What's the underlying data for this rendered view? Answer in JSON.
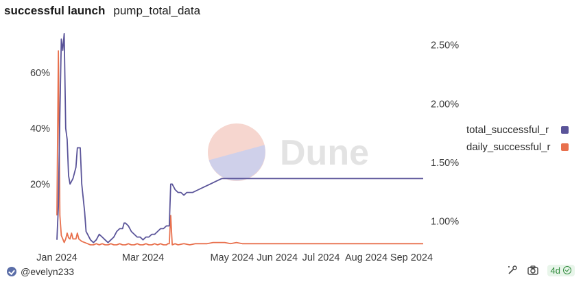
{
  "header": {
    "title": "successful launch",
    "subtitle": "pump_total_data"
  },
  "watermark": {
    "text": "Dune"
  },
  "footer": {
    "user": "@evelyn233",
    "age_badge": "4d",
    "icons": [
      "avatar-verified-icon",
      "wand-icon",
      "camera-icon",
      "check-circle-icon"
    ]
  },
  "colors": {
    "total": "#5a5499",
    "daily": "#e8704d",
    "watermark_top": "#f6d6cf",
    "watermark_bottom": "#cfd0ea"
  },
  "chart_data": {
    "type": "line",
    "title": "successful launch",
    "xlabel": "",
    "ylabel": "",
    "x_ticks": [
      "Jan 2024",
      "Mar 2024",
      "May 2024",
      "Jun 2024",
      "Jul 2024",
      "Aug 2024",
      "Sep 2024"
    ],
    "x_tick_days": [
      17,
      76,
      137,
      168,
      198,
      229,
      260
    ],
    "x_range_days": [
      17,
      268
    ],
    "y_left": {
      "ticks": [
        "20%",
        "40%",
        "60%"
      ],
      "tick_values": [
        20,
        40,
        60
      ],
      "range": [
        -1.8,
        72
      ]
    },
    "y_right": {
      "ticks": [
        "1.00%",
        "1.50%",
        "2.00%",
        "2.50%"
      ],
      "tick_values": [
        1.0,
        1.5,
        2.0,
        2.5
      ],
      "range": [
        0.8,
        2.55
      ]
    },
    "legend": [
      "total_successful_r",
      "daily_successful_r"
    ],
    "series": [
      {
        "name": "total_successful_r",
        "axis": "left",
        "points": [
          [
            17,
            0
          ],
          [
            18,
            12
          ],
          [
            19,
            45
          ],
          [
            20,
            72
          ],
          [
            21,
            68
          ],
          [
            22,
            74
          ],
          [
            23,
            40
          ],
          [
            24,
            36
          ],
          [
            25,
            23
          ],
          [
            26,
            20
          ],
          [
            27,
            21
          ],
          [
            28,
            22
          ],
          [
            30,
            26
          ],
          [
            31,
            33
          ],
          [
            33,
            33
          ],
          [
            34,
            20
          ],
          [
            35,
            15
          ],
          [
            36,
            10
          ],
          [
            37,
            3
          ],
          [
            38,
            2
          ],
          [
            40,
            0
          ],
          [
            42,
            -1
          ],
          [
            44,
            0
          ],
          [
            46,
            2
          ],
          [
            48,
            1
          ],
          [
            50,
            0
          ],
          [
            52,
            -1
          ],
          [
            54,
            0
          ],
          [
            56,
            1
          ],
          [
            58,
            3
          ],
          [
            60,
            4
          ],
          [
            62,
            4
          ],
          [
            63,
            6
          ],
          [
            64,
            6
          ],
          [
            66,
            5
          ],
          [
            68,
            3
          ],
          [
            70,
            2
          ],
          [
            72,
            1
          ],
          [
            74,
            1
          ],
          [
            76,
            0
          ],
          [
            78,
            1
          ],
          [
            80,
            1
          ],
          [
            82,
            2
          ],
          [
            84,
            2
          ],
          [
            86,
            3
          ],
          [
            88,
            4
          ],
          [
            90,
            4
          ],
          [
            92,
            5
          ],
          [
            93,
            5
          ],
          [
            94,
            5
          ],
          [
            95,
            20
          ],
          [
            96,
            20
          ],
          [
            98,
            18
          ],
          [
            100,
            17
          ],
          [
            102,
            17
          ],
          [
            104,
            16
          ],
          [
            106,
            17
          ],
          [
            110,
            17
          ],
          [
            114,
            18
          ],
          [
            118,
            19
          ],
          [
            122,
            20
          ],
          [
            126,
            21
          ],
          [
            130,
            22
          ],
          [
            134,
            22
          ],
          [
            138,
            22
          ],
          [
            142,
            22
          ],
          [
            146,
            22
          ],
          [
            150,
            22
          ],
          [
            154,
            22
          ],
          [
            158,
            22
          ],
          [
            162,
            22
          ],
          [
            166,
            22
          ],
          [
            170,
            22
          ],
          [
            174,
            22
          ],
          [
            178,
            22
          ],
          [
            182,
            22
          ],
          [
            186,
            22
          ],
          [
            190,
            22
          ],
          [
            194,
            22
          ],
          [
            198,
            22
          ],
          [
            202,
            22
          ],
          [
            206,
            22
          ],
          [
            210,
            22
          ],
          [
            214,
            22
          ],
          [
            218,
            22
          ],
          [
            222,
            22
          ],
          [
            226,
            22
          ],
          [
            230,
            22
          ],
          [
            234,
            22
          ],
          [
            238,
            22
          ],
          [
            242,
            22
          ],
          [
            246,
            22
          ],
          [
            250,
            22
          ],
          [
            254,
            22
          ],
          [
            258,
            22
          ],
          [
            262,
            22
          ],
          [
            266,
            22
          ],
          [
            268,
            22
          ]
        ]
      },
      {
        "name": "daily_successful_r",
        "axis": "right",
        "points": [
          [
            17,
            1.05
          ],
          [
            18,
            2.45
          ],
          [
            19,
            1.05
          ],
          [
            20,
            0.88
          ],
          [
            21,
            0.85
          ],
          [
            22,
            0.82
          ],
          [
            23,
            0.85
          ],
          [
            24,
            0.9
          ],
          [
            25,
            0.86
          ],
          [
            26,
            0.85
          ],
          [
            27,
            0.9
          ],
          [
            28,
            0.85
          ],
          [
            30,
            0.85
          ],
          [
            31,
            0.9
          ],
          [
            32,
            0.85
          ],
          [
            34,
            0.83
          ],
          [
            36,
            0.82
          ],
          [
            38,
            0.81
          ],
          [
            40,
            0.8
          ],
          [
            42,
            0.8
          ],
          [
            44,
            0.81
          ],
          [
            46,
            0.8
          ],
          [
            48,
            0.81
          ],
          [
            50,
            0.8
          ],
          [
            52,
            0.8
          ],
          [
            54,
            0.81
          ],
          [
            56,
            0.8
          ],
          [
            58,
            0.8
          ],
          [
            60,
            0.81
          ],
          [
            62,
            0.8
          ],
          [
            64,
            0.8
          ],
          [
            66,
            0.81
          ],
          [
            68,
            0.8
          ],
          [
            70,
            0.8
          ],
          [
            72,
            0.81
          ],
          [
            74,
            0.8
          ],
          [
            76,
            0.8
          ],
          [
            78,
            0.81
          ],
          [
            80,
            0.8
          ],
          [
            82,
            0.8
          ],
          [
            84,
            0.81
          ],
          [
            86,
            0.8
          ],
          [
            88,
            0.81
          ],
          [
            90,
            0.8
          ],
          [
            92,
            0.8
          ],
          [
            93,
            0.81
          ],
          [
            94,
            0.81
          ],
          [
            95,
            1.05
          ],
          [
            96,
            0.8
          ],
          [
            98,
            0.81
          ],
          [
            100,
            0.8
          ],
          [
            104,
            0.81
          ],
          [
            108,
            0.8
          ],
          [
            112,
            0.81
          ],
          [
            116,
            0.81
          ],
          [
            120,
            0.81
          ],
          [
            124,
            0.82
          ],
          [
            128,
            0.82
          ],
          [
            132,
            0.82
          ],
          [
            136,
            0.81
          ],
          [
            140,
            0.82
          ],
          [
            144,
            0.81
          ],
          [
            148,
            0.81
          ],
          [
            152,
            0.81
          ],
          [
            156,
            0.81
          ],
          [
            160,
            0.81
          ],
          [
            164,
            0.81
          ],
          [
            168,
            0.81
          ],
          [
            172,
            0.81
          ],
          [
            176,
            0.81
          ],
          [
            180,
            0.81
          ],
          [
            184,
            0.81
          ],
          [
            188,
            0.81
          ],
          [
            192,
            0.81
          ],
          [
            196,
            0.81
          ],
          [
            200,
            0.81
          ],
          [
            204,
            0.81
          ],
          [
            208,
            0.81
          ],
          [
            212,
            0.81
          ],
          [
            216,
            0.81
          ],
          [
            220,
            0.81
          ],
          [
            224,
            0.81
          ],
          [
            228,
            0.81
          ],
          [
            232,
            0.81
          ],
          [
            236,
            0.81
          ],
          [
            240,
            0.81
          ],
          [
            244,
            0.81
          ],
          [
            248,
            0.81
          ],
          [
            252,
            0.81
          ],
          [
            256,
            0.81
          ],
          [
            260,
            0.81
          ],
          [
            264,
            0.81
          ],
          [
            268,
            0.81
          ]
        ]
      }
    ]
  }
}
